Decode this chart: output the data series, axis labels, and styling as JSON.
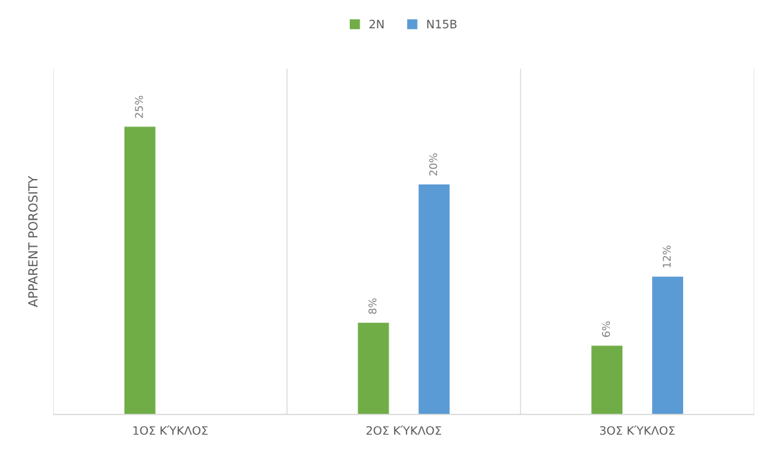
{
  "chart_data": {
    "type": "bar",
    "ylabel": "APPARENT POROSITY",
    "categories": [
      "1ΟΣ ΚΎΚΛΟΣ",
      "2ΟΣ ΚΎΚΛΟΣ",
      "3ΟΣ ΚΎΚΛΟΣ"
    ],
    "series": [
      {
        "name": "2N",
        "color": "#70ad47",
        "values": [
          25,
          8,
          6
        ],
        "value_labels": [
          "25%",
          "8%",
          "6%"
        ]
      },
      {
        "name": "N15B",
        "color": "#5b9bd5",
        "values": [
          null,
          20,
          12
        ],
        "value_labels": [
          null,
          "20%",
          "12%"
        ]
      }
    ],
    "grid": "x",
    "legend": "top"
  }
}
